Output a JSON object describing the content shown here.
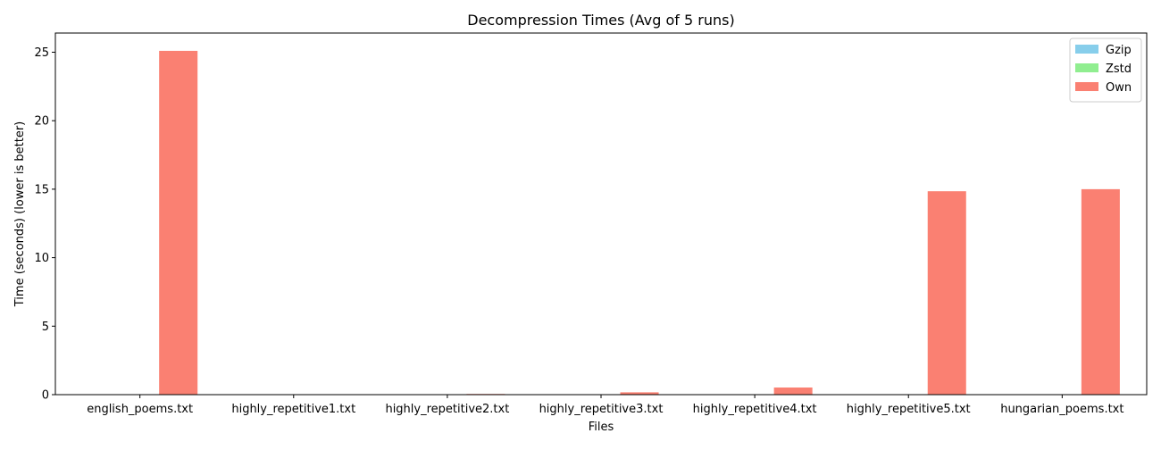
{
  "chart_data": {
    "type": "bar",
    "title": "Decompression Times (Avg of 5 runs)",
    "xlabel": "Files",
    "ylabel": "Time (seconds) (lower is better)",
    "ylim": [
      0,
      26.4
    ],
    "yticks": [
      0,
      5,
      10,
      15,
      20,
      25
    ],
    "categories": [
      "english_poems.txt",
      "highly_repetitive1.txt",
      "highly_repetitive2.txt",
      "highly_repetitive3.txt",
      "highly_repetitive4.txt",
      "highly_repetitive5.txt",
      "hungarian_poems.txt"
    ],
    "series": [
      {
        "name": "Gzip",
        "color": "#87ceeb",
        "values": [
          0.03,
          0.0,
          0.0,
          0.0,
          0.0,
          0.03,
          0.03
        ]
      },
      {
        "name": "Zstd",
        "color": "#90ee90",
        "values": [
          0.01,
          0.0,
          0.0,
          0.0,
          0.0,
          0.02,
          0.01
        ]
      },
      {
        "name": "Own",
        "color": "#fa8072",
        "values": [
          25.1,
          0.0,
          0.05,
          0.17,
          0.52,
          14.85,
          15.0
        ]
      }
    ],
    "grid": false,
    "legend_position": "top-right"
  }
}
